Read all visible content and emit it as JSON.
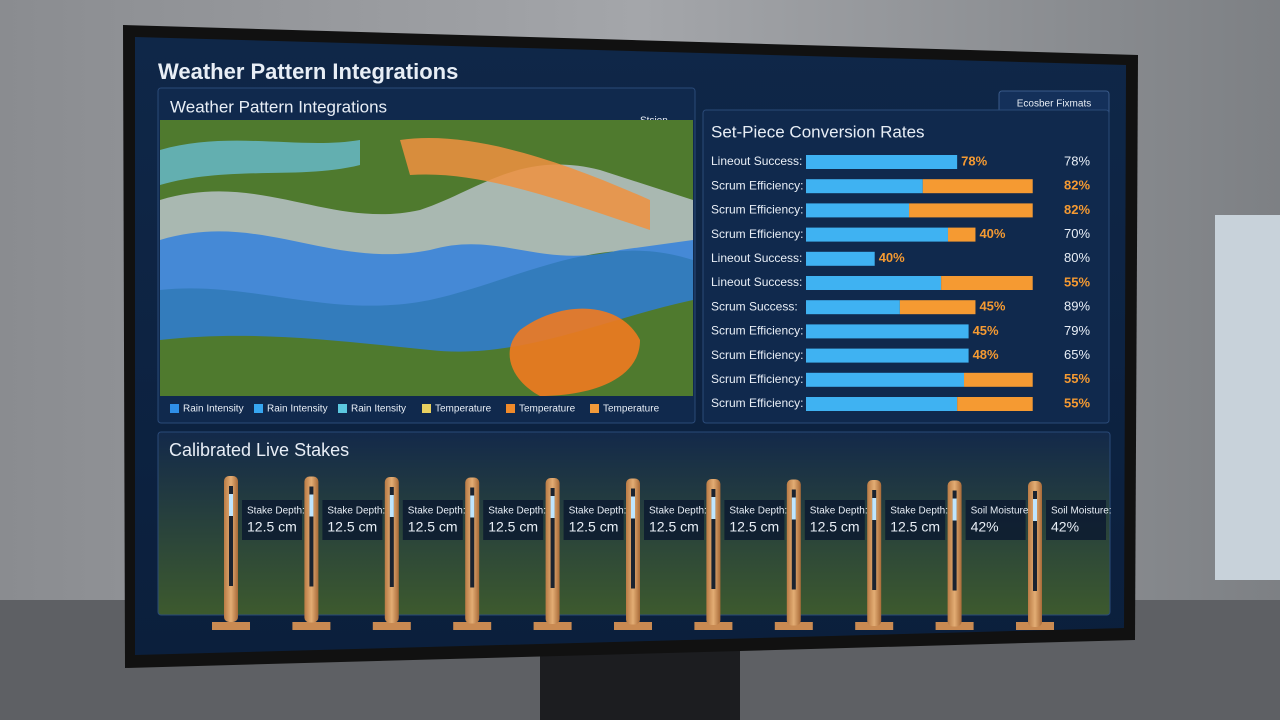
{
  "header": {
    "title": "Weather Pattern Integrations",
    "action": "Ecosber Fixmats"
  },
  "map_panel": {
    "title": "Weather Pattern Integrations",
    "search": "Stsion",
    "legend": [
      {
        "name": "Rain Intensity",
        "color": "#2f8fe8"
      },
      {
        "name": "Rain Intensity",
        "color": "#37a6f0"
      },
      {
        "name": "Rain Itensity",
        "color": "#5cc8e0"
      },
      {
        "name": "Temperature",
        "color": "#e8d060"
      },
      {
        "name": "Temperature",
        "color": "#f08a2a"
      },
      {
        "name": "Temperature",
        "color": "#f29a3a"
      }
    ]
  },
  "rates_panel": {
    "title": "Set-Piece Conversion Rates",
    "colors": {
      "blue": "#3fb2f2",
      "orange": "#f59a32"
    },
    "rows": [
      {
        "label": "Lineout Success:",
        "blue": 66,
        "orange": 0,
        "bar_label": "78%",
        "value": "78%"
      },
      {
        "label": "Scrum Efficiency:",
        "blue": 51,
        "orange": 48,
        "bar_label": "82%",
        "value": "82%"
      },
      {
        "label": "Scrum Efficiency:",
        "blue": 45,
        "orange": 54,
        "bar_label": "82%",
        "value": "82%"
      },
      {
        "label": "Scrum Efficiency:",
        "blue": 62,
        "orange": 12,
        "bar_label": "40%",
        "value": "70%"
      },
      {
        "label": "Lineout Success:",
        "blue": 30,
        "orange": 0,
        "bar_label": "40%",
        "value": "80%"
      },
      {
        "label": "Lineout Success:",
        "blue": 59,
        "orange": 40,
        "bar_label": "55%",
        "value": "55%"
      },
      {
        "label": "Scrum Success:",
        "blue": 41,
        "orange": 33,
        "bar_label": "45%",
        "value": "89%"
      },
      {
        "label": "Scrum Efficiency:",
        "blue": 71,
        "orange": 0,
        "bar_label": "45%",
        "value": "79%"
      },
      {
        "label": "Scrum Efficiency:",
        "blue": 71,
        "orange": 0,
        "bar_label": "48%",
        "value": "65%"
      },
      {
        "label": "Scrum Efficiency:",
        "blue": 69,
        "orange": 30,
        "bar_label": "55%",
        "value": "55%"
      },
      {
        "label": "Scrum Efficiency:",
        "blue": 66,
        "orange": 33,
        "bar_label": "55%",
        "value": "55%"
      }
    ]
  },
  "stakes_panel": {
    "title": "Calibrated Live Stakes",
    "stakes": [
      {
        "label": "Stake Depth:",
        "value": "12.5 cm"
      },
      {
        "label": "Stake Depth:",
        "value": "12.5 cm"
      },
      {
        "label": "Stake Depth:",
        "value": "12.5 cm"
      },
      {
        "label": "Stake Depth:",
        "value": "12.5 cm"
      },
      {
        "label": "Stake Depth:",
        "value": "12.5 cm"
      },
      {
        "label": "Stake Depth:",
        "value": "12.5 cm"
      },
      {
        "label": "Stake Depth:",
        "value": "12.5 cm"
      },
      {
        "label": "Stake Depth:",
        "value": "12.5 cm"
      },
      {
        "label": "Stake Depth:",
        "value": "12.5 cm"
      },
      {
        "label": "Soil Moisture:",
        "value": "42%"
      },
      {
        "label": "Soil Moisture:",
        "value": "42%"
      }
    ]
  }
}
